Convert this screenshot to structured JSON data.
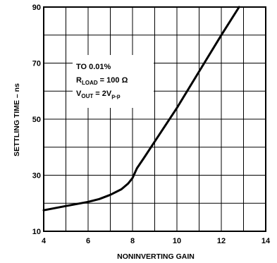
{
  "chart_data": {
    "type": "line",
    "xlabel": "NONINVERTING GAIN",
    "ylabel": "SETTLING TIME – ns",
    "xlim": [
      4,
      14
    ],
    "ylim": [
      10,
      90
    ],
    "xticks": [
      "4",
      "6",
      "8",
      "10",
      "12",
      "14"
    ],
    "yticks": [
      "10",
      "30",
      "50",
      "70",
      "90"
    ],
    "grid": true,
    "series": [
      {
        "x": [
          4,
          5,
          6,
          6.5,
          7,
          7.5,
          7.8,
          8,
          8.2,
          8.5,
          9,
          10,
          11,
          12,
          12.8
        ],
        "y": [
          17.5,
          19,
          20.5,
          21.5,
          23,
          25,
          27,
          29,
          32.5,
          36,
          42,
          54,
          67,
          80,
          90
        ]
      }
    ],
    "annotation": {
      "line1": "TO 0.01%",
      "line2_main": "R",
      "line2_sub": "LOAD",
      "line2_tail": " = 100 Ω",
      "line3_main": "V",
      "line3_sub": "OUT",
      "line3_mid": " = 2V",
      "line3_sub2": "p-p"
    }
  }
}
